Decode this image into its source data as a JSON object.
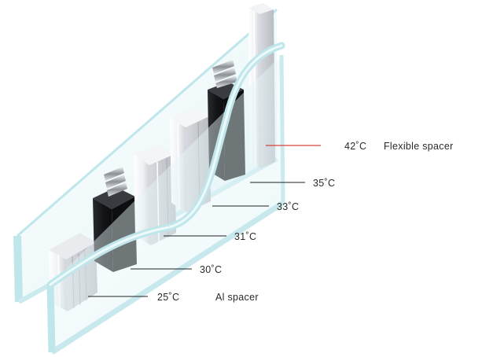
{
  "callouts": {
    "flexible": {
      "temperature": "42˚C",
      "label": "Flexible spacer"
    },
    "t35": {
      "temperature": "35˚C"
    },
    "t33": {
      "temperature": "33˚C"
    },
    "t31": {
      "temperature": "31˚C"
    },
    "t30": {
      "temperature": "30˚C"
    },
    "aluminium": {
      "temperature": "25˚C",
      "label": "Al spacer"
    }
  },
  "colors": {
    "glass_edge": "#bfe6ea",
    "glass_face": "#e8f6f8",
    "black_spacer": "#1b1c1f",
    "white_spacer": "#f1f2f4",
    "flexible_leader": "#d8433f",
    "leader": "#222222"
  }
}
